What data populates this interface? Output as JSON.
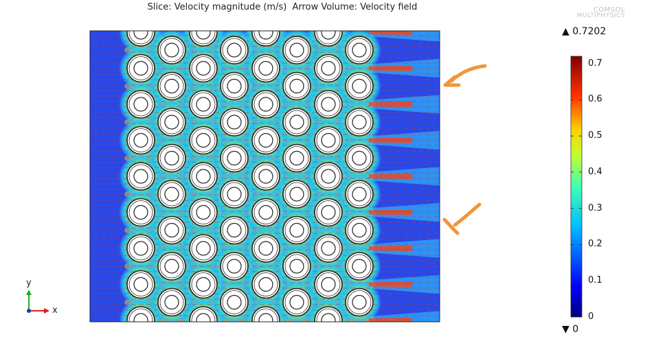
{
  "title": "Slice: Velocity magnitude (m/s)  Arrow Volume: Velocity field",
  "logo": {
    "line1": "COMSOL",
    "line2": "MULTIPHYSICS"
  },
  "colorbar": {
    "max_label": "0.7202",
    "min_label": "0",
    "max_symbol": "▲",
    "min_symbol": "▼",
    "vmin": 0,
    "vmax": 0.7202,
    "ticks": [
      "0.7",
      "0.6",
      "0.5",
      "0.4",
      "0.3",
      "0.2",
      "0.1",
      "0"
    ],
    "tick_values": [
      0.7,
      0.6,
      0.5,
      0.4,
      0.3,
      0.2,
      0.1,
      0
    ]
  },
  "axes_triad": {
    "x_label": "x",
    "y_label": "y",
    "x_color": "#d62020",
    "y_color": "#20b020"
  },
  "colors": {
    "background_flow": "#2040e0",
    "annotation_arrow": "#f2953a",
    "cylinder_fill": "#ffffff",
    "cylinder_stroke": "#222222"
  },
  "annotations": [
    {
      "name": "upper-orange-arrow"
    },
    {
      "name": "lower-orange-arrow"
    }
  ]
}
